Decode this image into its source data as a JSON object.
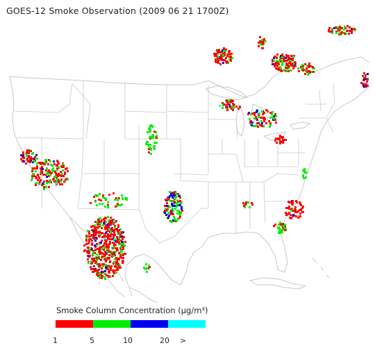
{
  "title": "GOES-12 Smoke Observation (2009 06 21  1700Z)",
  "legend": {
    "title": "Smoke Column Concentration (µg/m³)",
    "bins": [
      {
        "color": "#ff0000"
      },
      {
        "color": "#00ee00"
      },
      {
        "color": "#0000ee"
      },
      {
        "color": "#00ffff"
      }
    ],
    "ticks": [
      "1",
      "5",
      "10",
      "20",
      ">"
    ]
  },
  "colors": {
    "low": "#ff0000",
    "moderate": "#00ee00",
    "high": "#0000ee",
    "very_high": "#00ffff",
    "outline": "#c8c8c8"
  }
}
